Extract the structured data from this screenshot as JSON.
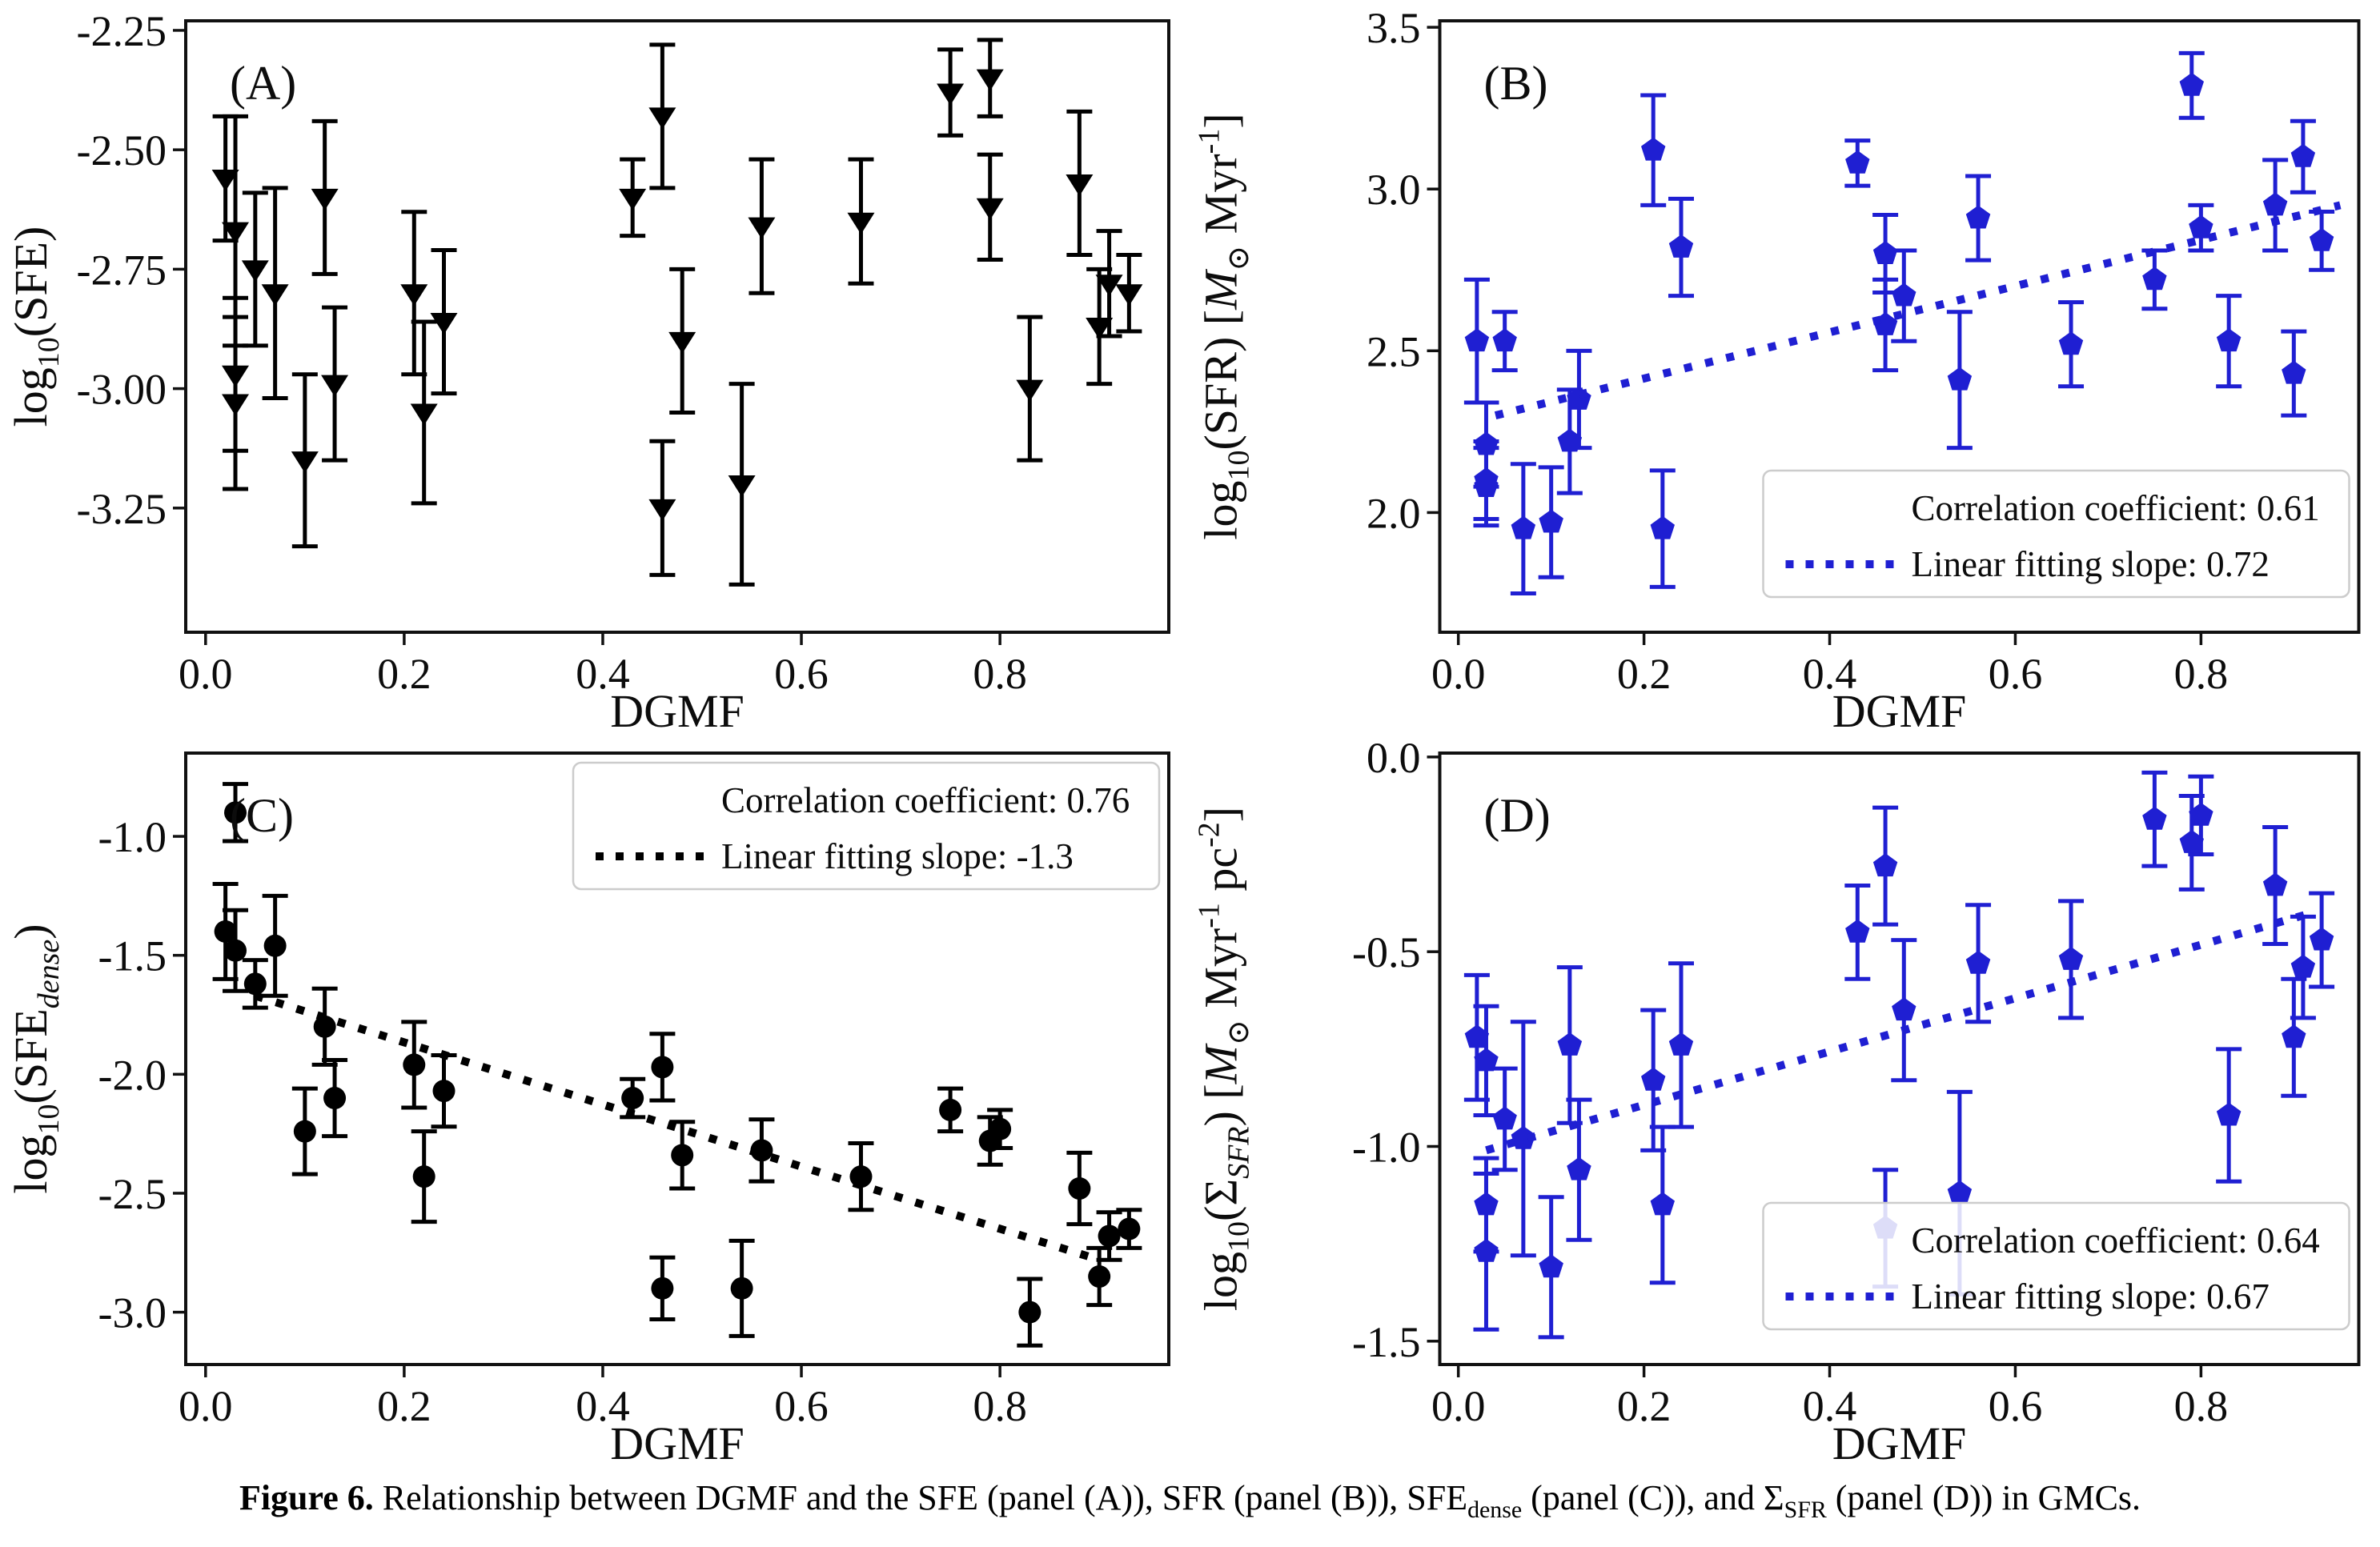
{
  "figure": {
    "type": "scientific-figure",
    "background": "#ffffff",
    "caption": {
      "label": "Figure 6.",
      "parts": [
        {
          "style": "normal",
          "text": " Relationship between DGMF and the SFE (panel (A)), SFR (panel (B)), SFE"
        },
        {
          "style": "sub",
          "text": "dense"
        },
        {
          "style": "normal",
          "text": " (panel (C)), and Σ"
        },
        {
          "style": "sub",
          "text": "SFR"
        },
        {
          "style": "normal",
          "text": " (panel (D)) in GMCs."
        }
      ]
    },
    "palette": {
      "data_blue": "#1f1fd2",
      "data_black": "#000000",
      "axis_color": "#111111",
      "legend_border": "#cccccc",
      "legend_fill": "rgba(255,255,255,0.85)"
    }
  },
  "chart_data": [
    {
      "type": "scatter",
      "panel": "(A)",
      "quadrant": "top-left",
      "xlabel": "DGMF",
      "ylabel": "log_{10}(SFE)",
      "marker": "triangle-down-marker",
      "color": "#000000",
      "xlim": [
        -0.02,
        0.97
      ],
      "ylim": [
        -3.51,
        -2.23
      ],
      "xticks": [
        0.0,
        0.2,
        0.4,
        0.6,
        0.8
      ],
      "xtick_labels": [
        "0.0",
        "0.2",
        "0.4",
        "0.6",
        "0.8"
      ],
      "yticks": [
        -2.25,
        -2.5,
        -2.75,
        -3.0,
        -3.25
      ],
      "ytick_labels": [
        "-2.25",
        "-2.50",
        "-2.75",
        "-3.00",
        "-3.25"
      ],
      "grid": false,
      "legend": null,
      "fit_line": null,
      "points": [
        [
          0.02,
          -2.56,
          0.13
        ],
        [
          0.03,
          -2.67,
          0.24
        ],
        [
          0.03,
          -2.97,
          0.16
        ],
        [
          0.03,
          -3.03,
          0.18
        ],
        [
          0.05,
          -2.75,
          0.16
        ],
        [
          0.07,
          -2.8,
          0.22
        ],
        [
          0.1,
          -3.15,
          0.18
        ],
        [
          0.12,
          -2.6,
          0.16
        ],
        [
          0.13,
          -2.99,
          0.16
        ],
        [
          0.21,
          -2.8,
          0.17
        ],
        [
          0.22,
          -3.05,
          0.19
        ],
        [
          0.24,
          -2.86,
          0.15
        ],
        [
          0.43,
          -2.6,
          0.08
        ],
        [
          0.46,
          -2.43,
          0.15
        ],
        [
          0.46,
          -3.25,
          0.14
        ],
        [
          0.48,
          -2.9,
          0.15
        ],
        [
          0.54,
          -3.2,
          0.21
        ],
        [
          0.56,
          -2.66,
          0.14
        ],
        [
          0.66,
          -2.65,
          0.13
        ],
        [
          0.75,
          -2.38,
          0.09
        ],
        [
          0.79,
          -2.35,
          0.08
        ],
        [
          0.79,
          -2.62,
          0.11
        ],
        [
          0.83,
          -3.0,
          0.15
        ],
        [
          0.88,
          -2.57,
          0.15
        ],
        [
          0.9,
          -2.87,
          0.12
        ],
        [
          0.91,
          -2.78,
          0.11
        ],
        [
          0.93,
          -2.8,
          0.08
        ]
      ]
    },
    {
      "type": "scatter",
      "panel": "(B)",
      "quadrant": "top-right",
      "xlabel": "DGMF",
      "ylabel": "log_{10}(SFR) [*M*_{⊙} Myr^{-1}]",
      "marker": "pentagon-marker",
      "color": "#1f1fd2",
      "xlim": [
        -0.02,
        0.97
      ],
      "ylim": [
        1.63,
        3.52
      ],
      "xticks": [
        0.0,
        0.2,
        0.4,
        0.6,
        0.8
      ],
      "xtick_labels": [
        "0.0",
        "0.2",
        "0.4",
        "0.6",
        "0.8"
      ],
      "yticks": [
        2.0,
        2.5,
        3.0,
        3.5
      ],
      "ytick_labels": [
        "2.0",
        "2.5",
        "3.0",
        "3.5"
      ],
      "grid": false,
      "legend": {
        "position": "lower-right",
        "rows": [
          {
            "swatch": "none",
            "label": "Correlation coefficient: 0.61"
          },
          {
            "swatch": "dotted-line",
            "label": "Linear fitting slope: 0.72"
          }
        ]
      },
      "fit_line": {
        "x0": 0.04,
        "y0": 2.3,
        "x1": 0.95,
        "y1": 2.95
      },
      "points": [
        [
          0.02,
          2.53,
          0.19
        ],
        [
          0.03,
          2.21,
          0.13
        ],
        [
          0.03,
          2.1,
          0.12
        ],
        [
          0.03,
          2.08,
          0.12
        ],
        [
          0.05,
          2.53,
          0.09
        ],
        [
          0.07,
          1.95,
          0.2
        ],
        [
          0.1,
          1.97,
          0.17
        ],
        [
          0.12,
          2.22,
          0.16
        ],
        [
          0.13,
          2.35,
          0.15
        ],
        [
          0.21,
          3.12,
          0.17
        ],
        [
          0.22,
          1.95,
          0.18
        ],
        [
          0.24,
          2.82,
          0.15
        ],
        [
          0.43,
          3.08,
          0.07
        ],
        [
          0.46,
          2.8,
          0.12
        ],
        [
          0.46,
          2.58,
          0.14
        ],
        [
          0.48,
          2.67,
          0.14
        ],
        [
          0.54,
          2.41,
          0.21
        ],
        [
          0.56,
          2.91,
          0.13
        ],
        [
          0.66,
          2.52,
          0.13
        ],
        [
          0.75,
          2.72,
          0.09
        ],
        [
          0.79,
          3.32,
          0.1
        ],
        [
          0.8,
          2.88,
          0.07
        ],
        [
          0.83,
          2.53,
          0.14
        ],
        [
          0.88,
          2.95,
          0.14
        ],
        [
          0.9,
          2.43,
          0.13
        ],
        [
          0.91,
          3.1,
          0.11
        ],
        [
          0.93,
          2.84,
          0.09
        ]
      ]
    },
    {
      "type": "scatter",
      "panel": "(C)",
      "quadrant": "bottom-left",
      "xlabel": "DGMF",
      "ylabel": "log_{10}(SFE_{*dense*})",
      "marker": "circle-marker",
      "color": "#000000",
      "xlim": [
        -0.02,
        0.97
      ],
      "ylim": [
        -3.22,
        -0.65
      ],
      "xticks": [
        0.0,
        0.2,
        0.4,
        0.6,
        0.8
      ],
      "xtick_labels": [
        "0.0",
        "0.2",
        "0.4",
        "0.6",
        "0.8"
      ],
      "yticks": [
        -1.0,
        -1.5,
        -2.0,
        -2.5,
        -3.0
      ],
      "ytick_labels": [
        "-1.0",
        "-1.5",
        "-2.0",
        "-2.5",
        "-3.0"
      ],
      "grid": false,
      "legend": {
        "position": "upper-right",
        "rows": [
          {
            "swatch": "none",
            "label": "Correlation coefficient: 0.76"
          },
          {
            "swatch": "dotted-line",
            "label": "Linear fitting slope: -1.3"
          }
        ]
      },
      "fit_line": {
        "x0": 0.05,
        "y0": -1.67,
        "x1": 0.9,
        "y1": -2.78
      },
      "points": [
        [
          0.02,
          -1.4,
          0.2
        ],
        [
          0.03,
          -0.9,
          0.12
        ],
        [
          0.03,
          -1.48,
          0.17
        ],
        [
          0.05,
          -1.62,
          0.1
        ],
        [
          0.07,
          -1.46,
          0.21
        ],
        [
          0.1,
          -2.24,
          0.18
        ],
        [
          0.12,
          -1.8,
          0.16
        ],
        [
          0.13,
          -2.1,
          0.16
        ],
        [
          0.21,
          -1.96,
          0.18
        ],
        [
          0.22,
          -2.43,
          0.19
        ],
        [
          0.24,
          -2.07,
          0.15
        ],
        [
          0.43,
          -2.1,
          0.08
        ],
        [
          0.46,
          -1.97,
          0.14
        ],
        [
          0.46,
          -2.9,
          0.13
        ],
        [
          0.48,
          -2.34,
          0.14
        ],
        [
          0.54,
          -2.9,
          0.2
        ],
        [
          0.56,
          -2.32,
          0.13
        ],
        [
          0.66,
          -2.43,
          0.14
        ],
        [
          0.75,
          -2.15,
          0.09
        ],
        [
          0.79,
          -2.28,
          0.1
        ],
        [
          0.8,
          -2.23,
          0.08
        ],
        [
          0.83,
          -3.0,
          0.14
        ],
        [
          0.88,
          -2.48,
          0.15
        ],
        [
          0.9,
          -2.85,
          0.12
        ],
        [
          0.91,
          -2.68,
          0.1
        ],
        [
          0.93,
          -2.65,
          0.08
        ]
      ]
    },
    {
      "type": "scatter",
      "panel": "(D)",
      "quadrant": "bottom-right",
      "xlabel": "DGMF",
      "ylabel": "log_{10}(Σ_{*SFR*}) [*M*_{⊙} Myr^{-1} pc^{-2}]",
      "marker": "pentagon-marker",
      "color": "#1f1fd2",
      "xlim": [
        -0.02,
        0.97
      ],
      "ylim": [
        -1.56,
        0.01
      ],
      "xticks": [
        0.0,
        0.2,
        0.4,
        0.6,
        0.8
      ],
      "xtick_labels": [
        "0.0",
        "0.2",
        "0.4",
        "0.6",
        "0.8"
      ],
      "yticks": [
        0.0,
        -0.5,
        -1.0,
        -1.5
      ],
      "ytick_labels": [
        "0.0",
        "-0.5",
        "-1.0",
        "-1.5"
      ],
      "grid": false,
      "legend": {
        "position": "lower-right",
        "rows": [
          {
            "swatch": "none",
            "label": "Correlation coefficient: 0.64"
          },
          {
            "swatch": "dotted-line",
            "label": "Linear fitting slope: 0.67"
          }
        ]
      },
      "fit_line": {
        "x0": 0.03,
        "y0": -1.01,
        "x1": 0.92,
        "y1": -0.4
      },
      "points": [
        [
          0.02,
          -0.72,
          0.16
        ],
        [
          0.03,
          -0.78,
          0.14
        ],
        [
          0.03,
          -1.15,
          0.12
        ],
        [
          0.03,
          -1.27,
          0.2
        ],
        [
          0.05,
          -0.93,
          0.13
        ],
        [
          0.07,
          -0.98,
          0.3
        ],
        [
          0.1,
          -1.31,
          0.18
        ],
        [
          0.12,
          -0.74,
          0.2
        ],
        [
          0.13,
          -1.06,
          0.18
        ],
        [
          0.21,
          -0.83,
          0.18
        ],
        [
          0.22,
          -1.15,
          0.2
        ],
        [
          0.24,
          -0.74,
          0.21
        ],
        [
          0.43,
          -0.45,
          0.12
        ],
        [
          0.46,
          -0.28,
          0.15
        ],
        [
          0.46,
          -1.21,
          0.15
        ],
        [
          0.48,
          -0.65,
          0.18
        ],
        [
          0.54,
          -1.12,
          0.26
        ],
        [
          0.56,
          -0.53,
          0.15
        ],
        [
          0.66,
          -0.52,
          0.15
        ],
        [
          0.75,
          -0.16,
          0.12
        ],
        [
          0.79,
          -0.22,
          0.12
        ],
        [
          0.8,
          -0.15,
          0.1
        ],
        [
          0.83,
          -0.92,
          0.17
        ],
        [
          0.88,
          -0.33,
          0.15
        ],
        [
          0.9,
          -0.72,
          0.15
        ],
        [
          0.91,
          -0.54,
          0.13
        ],
        [
          0.93,
          -0.47,
          0.12
        ]
      ]
    }
  ]
}
